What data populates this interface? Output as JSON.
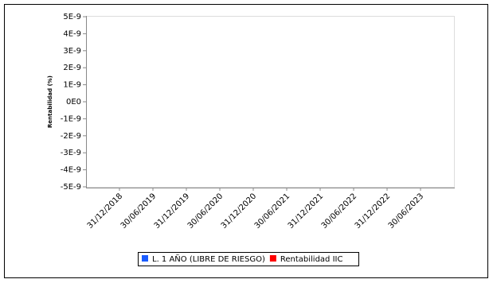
{
  "chart_data": {
    "type": "line",
    "y_label": "Rentabilidad (%)",
    "categories": [
      "31/12/2018",
      "30/06/2019",
      "31/12/2019",
      "30/06/2020",
      "31/12/2020",
      "30/06/2021",
      "31/12/2021",
      "30/06/2022",
      "31/12/2022",
      "30/06/2023"
    ],
    "series": [
      {
        "name": "L. 1 AÑO (LIBRE DE RIESGO)",
        "color": "#1a5cff",
        "values": [
          null,
          null,
          null,
          null,
          null,
          null,
          null,
          null,
          null,
          null
        ]
      },
      {
        "name": "Rentabilidad IIC",
        "color": "#ff0000",
        "values": [
          null,
          null,
          null,
          null,
          null,
          null,
          null,
          null,
          null,
          null
        ]
      }
    ],
    "ylim": [
      -5e-09,
      5e-09
    ],
    "yticks": [
      {
        "value": 5e-09,
        "label": "5E-9"
      },
      {
        "value": 4e-09,
        "label": "4E-9"
      },
      {
        "value": 3e-09,
        "label": "3E-9"
      },
      {
        "value": 2e-09,
        "label": "2E-9"
      },
      {
        "value": 1e-09,
        "label": "1E-9"
      },
      {
        "value": 0,
        "label": "0E0"
      },
      {
        "value": -1e-09,
        "label": "-1E-9"
      },
      {
        "value": -2e-09,
        "label": "-2E-9"
      },
      {
        "value": -3e-09,
        "label": "-3E-9"
      },
      {
        "value": -4e-09,
        "label": "-4E-9"
      },
      {
        "value": -5e-09,
        "label": "-5E-9"
      }
    ],
    "grid": false
  }
}
